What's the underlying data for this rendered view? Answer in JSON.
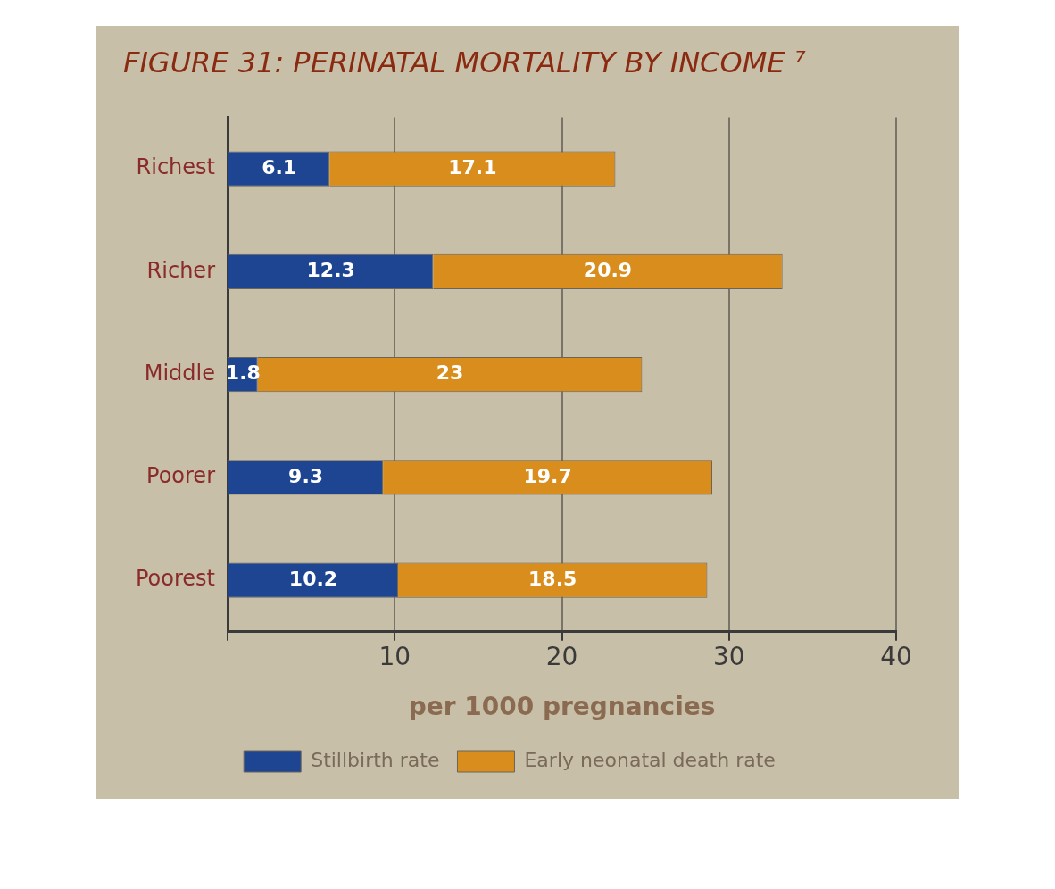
{
  "chart_data": {
    "type": "bar",
    "orientation": "horizontal",
    "stacked": true,
    "title": "FIGURE 31: PERINATAL MORTALITY BY INCOME ⁷",
    "xlabel": "per 1000 pregnancies",
    "categories": [
      "Richest",
      "Richer",
      "Middle",
      "Poorer",
      "Poorest"
    ],
    "series": [
      {
        "name": "Stillbirth rate",
        "color": "#1d4591",
        "values": [
          6.1,
          12.3,
          1.8,
          9.3,
          10.2
        ]
      },
      {
        "name": "Early neonatal death rate",
        "color": "#d98d1c",
        "values": [
          17.1,
          20.9,
          23,
          19.7,
          18.5
        ]
      }
    ],
    "xlim": [
      0,
      40
    ],
    "xticks": [
      {
        "value": 0,
        "label": null
      },
      10,
      20,
      30,
      40
    ],
    "grid": "x",
    "legend": "bottom",
    "data_labels": true
  }
}
